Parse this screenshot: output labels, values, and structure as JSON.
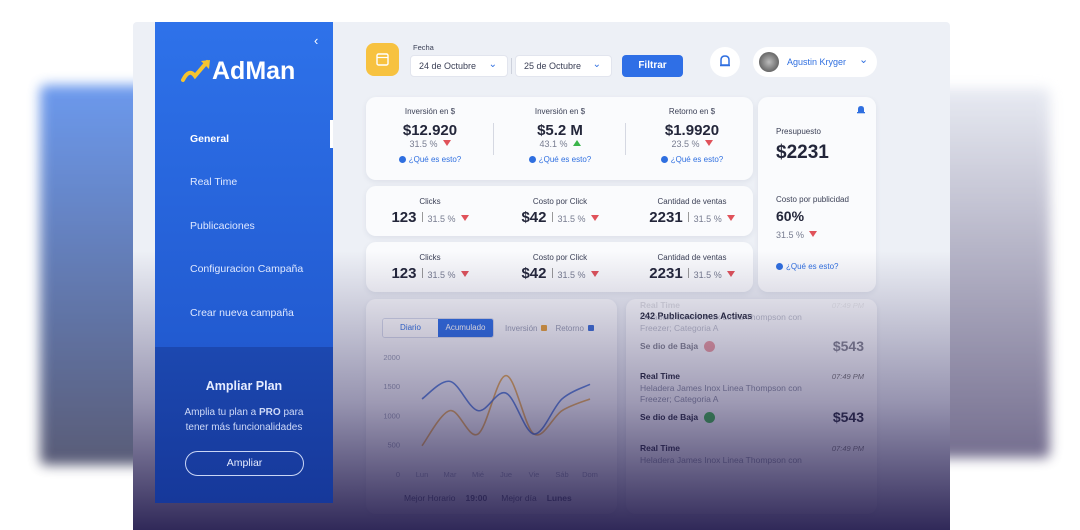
{
  "sidebar": {
    "logo": "AdMan",
    "nav": [
      "General",
      "Real Time",
      "Publicaciones",
      "Configuracion Campaña",
      "Crear nueva campaña"
    ],
    "plan": {
      "title": "Ampliar Plan",
      "text": [
        "Amplia tu plan a ",
        "PRO",
        " para tener más funcionalidades"
      ],
      "button": "Ampliar"
    }
  },
  "topbar": {
    "date_label": "Fecha",
    "date_from": "24 de Octubre",
    "date_to": "25 de Octubre",
    "filter": "Filtrar",
    "user": "Agustin Kryger"
  },
  "summary": [
    {
      "label": "Inversión en $",
      "value": "$12.920",
      "change": "31.5 %",
      "trend": "down",
      "help": "¿Qué es esto?"
    },
    {
      "label": "Inversión en $",
      "value": "$5.2 M",
      "change": "43.1 %",
      "trend": "up",
      "help": "¿Qué es esto?"
    },
    {
      "label": "Retorno en $",
      "value": "$1.9920",
      "change": "23.5 %",
      "trend": "down",
      "help": "¿Qué es esto?"
    }
  ],
  "metrics": [
    [
      {
        "label": "Clicks",
        "value": "123",
        "change": "31.5 %",
        "trend": "down"
      },
      {
        "label": "Costo por Click",
        "value": "$42",
        "change": "31.5 %",
        "trend": "down"
      },
      {
        "label": "Cantidad de ventas",
        "value": "2231",
        "change": "31.5 %",
        "trend": "down"
      }
    ],
    [
      {
        "label": "Clicks",
        "value": "123",
        "change": "31.5 %",
        "trend": "down"
      },
      {
        "label": "Costo por Click",
        "value": "$42",
        "change": "31.5 %",
        "trend": "down"
      },
      {
        "label": "Cantidad de ventas",
        "value": "2231",
        "change": "31.5 %",
        "trend": "down"
      }
    ]
  ],
  "budget": {
    "label": "Presupuesto",
    "value": "$2231",
    "cost_label": "Costo por publicidad",
    "cost_value": "60%",
    "change": "31.5 %",
    "trend": "down",
    "help": "¿Qué es esto?"
  },
  "chart_panel": {
    "tabs": [
      "Diario",
      "Acumulado"
    ],
    "active_tab": 1,
    "stats": [
      {
        "label": "Mejor Horario",
        "value": "19:00"
      },
      {
        "label": "Mejor día",
        "value": "Lunes"
      }
    ]
  },
  "chart_data": {
    "type": "line",
    "categories": [
      "Lun",
      "Mar",
      "Mié",
      "Jue",
      "Vie",
      "Sáb",
      "Dom"
    ],
    "series": [
      {
        "name": "Inversión",
        "color": "#e8a23a",
        "values": [
          500,
          1100,
          700,
          1700,
          700,
          1100,
          1300
        ]
      },
      {
        "name": "Retorno",
        "color": "#3d6fd6",
        "values": [
          1300,
          1600,
          1100,
          1400,
          700,
          1300,
          1550
        ]
      }
    ],
    "ylim": [
      0,
      2000
    ],
    "yticks": [
      0,
      500,
      1000,
      1500,
      2000
    ],
    "grid": false
  },
  "publications": {
    "title": "242 Publicaciones Activas",
    "items": [
      {
        "status": "Real Time",
        "time": "07:49 PM",
        "desc": "Heladera James Inox Linea Thompson con Freezer; Categoria A",
        "action": "Se dio de Baja",
        "icon": "down",
        "price": "$543"
      },
      {
        "status": "Real Time",
        "time": "07:49 PM",
        "desc": "Heladera James Inox Linea Thompson con Freezer; Categoria A",
        "action": "Se dio de Baja",
        "icon": "up",
        "price": "$543"
      },
      {
        "status": "Real Time",
        "time": "07:49 PM",
        "desc": "Heladera James Inox Linea Thompson con",
        "action": "",
        "icon": "",
        "price": ""
      }
    ]
  }
}
